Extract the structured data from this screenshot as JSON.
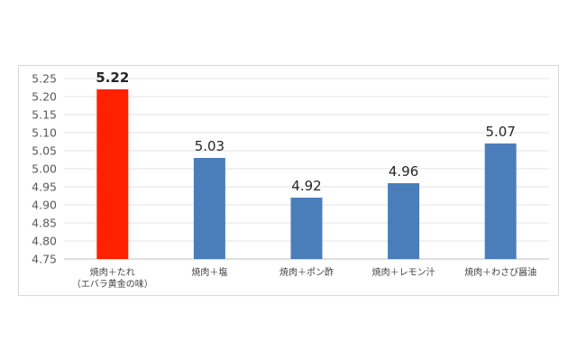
{
  "chart_data": {
    "type": "bar",
    "title": "",
    "xlabel": "",
    "ylabel": "",
    "categories": [
      [
        "焼肉＋たれ",
        "（エバラ黄金の味）"
      ],
      [
        "焼肉＋塩"
      ],
      [
        "焼肉＋ポン酢"
      ],
      [
        "焼肉＋レモン汁"
      ],
      [
        "焼肉＋わさび醤油"
      ]
    ],
    "values": [
      5.22,
      5.03,
      4.92,
      4.96,
      5.07
    ],
    "data_labels": [
      "5.22",
      "5.03",
      "4.92",
      "4.96",
      "5.07"
    ],
    "bar_colors": [
      "#ff2200",
      "#4a7ebb",
      "#4a7ebb",
      "#4a7ebb",
      "#4a7ebb"
    ],
    "highlight_index": 0,
    "ylim": [
      4.75,
      5.25
    ],
    "yticks": [
      "4.75",
      "4.80",
      "4.85",
      "4.90",
      "4.95",
      "5.00",
      "5.05",
      "5.10",
      "5.15",
      "5.20",
      "5.25"
    ],
    "grid": true,
    "legend": "none"
  }
}
